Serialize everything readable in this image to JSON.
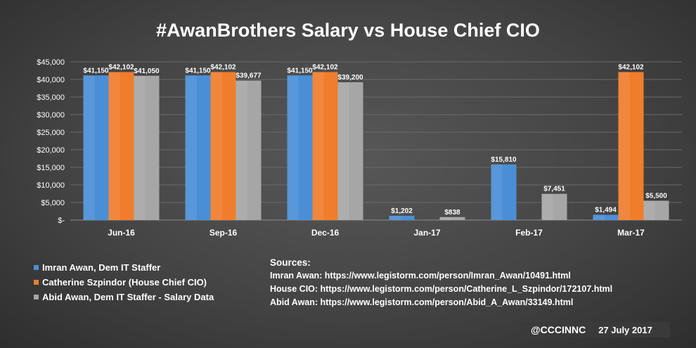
{
  "title": "#AwanBrothers Salary vs House Chief CIO",
  "colors": {
    "imran": "#4a8fd6",
    "catherine": "#f07d2c",
    "abid": "#a6a6a6",
    "axis": "#8c8c8c",
    "grid": "#6a6a6a"
  },
  "chart_data": {
    "type": "bar",
    "title": "#AwanBrothers Salary vs House Chief CIO",
    "categories": [
      "Jun-16",
      "Sep-16",
      "Dec-16",
      "Jan-17",
      "Feb-17",
      "Mar-17"
    ],
    "series": [
      {
        "name": "Imran Awan, Dem IT Staffer",
        "color_key": "imran",
        "values": [
          41150,
          41150,
          41150,
          1202,
          15810,
          1494
        ]
      },
      {
        "name": "Catherine Szpindor (House Chief CIO)",
        "color_key": "catherine",
        "values": [
          42102,
          42102,
          42102,
          null,
          null,
          42102
        ]
      },
      {
        "name": "Abid Awan, Dem IT Staffer - Salary Data",
        "color_key": "abid",
        "values": [
          41050,
          39677,
          39200,
          838,
          7451,
          5500
        ]
      }
    ],
    "ylim": [
      0,
      45000
    ],
    "yticks": [
      0,
      5000,
      10000,
      15000,
      20000,
      25000,
      30000,
      35000,
      40000,
      45000
    ],
    "ytick_labels": [
      "$-",
      "$5,000",
      "$10,000",
      "$15,000",
      "$20,000",
      "$25,000",
      "$30,000",
      "$35,000",
      "$40,000",
      "$45,000"
    ],
    "xlabel": "",
    "ylabel": "",
    "legend_position": "bottom-left"
  },
  "legend": {
    "items": [
      "Imran Awan, Dem IT Staffer",
      "Catherine Szpindor (House Chief CIO)",
      "Abid Awan, Dem IT Staffer - Salary Data"
    ]
  },
  "sources": {
    "heading": "Sources:",
    "lines": [
      "Imran Awan: https://www.legistorm.com/person/Imran_Awan/10491.html",
      "House CIO: https://www.legistorm.com/person/Catherine_L_Szpindor/172107.html",
      "Abid Awan: https://www.legistorm.com/person/Abid_A_Awan/33149.html"
    ]
  },
  "footer": {
    "handle": "@CCCINNC",
    "date": "27 July 2017"
  }
}
